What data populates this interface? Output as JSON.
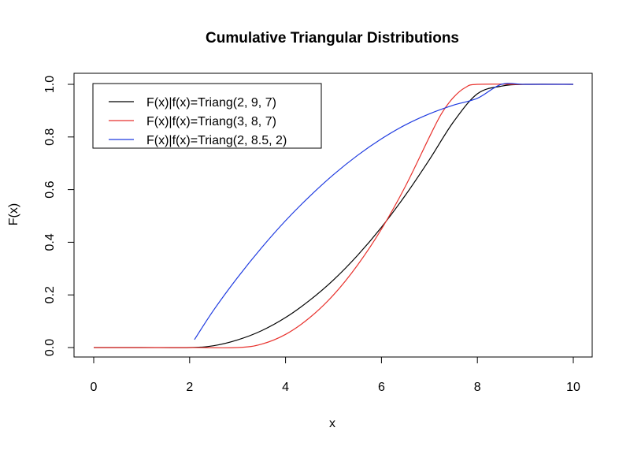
{
  "chart_data": {
    "type": "line",
    "title": "Cumulative Triangular Distributions",
    "xlabel": "x",
    "ylabel": "F(x)",
    "xlim": [
      0,
      10
    ],
    "ylim": [
      0,
      1
    ],
    "xticks": [
      0,
      2,
      4,
      6,
      8,
      10
    ],
    "xtick_labels": [
      "0",
      "2",
      "4",
      "6",
      "8",
      "10"
    ],
    "yticks": [
      0,
      0.2,
      0.4,
      0.6,
      0.8,
      1
    ],
    "ytick_labels": [
      "0.0",
      "0.2",
      "0.4",
      "0.6",
      "0.8",
      "1.0"
    ],
    "grid": false,
    "legend_position": "top-left",
    "series": [
      {
        "name": "F(x)|f(x)=Triang(2, 9, 7)",
        "color": "#000000",
        "x": [
          0,
          1,
          2,
          2.5,
          3,
          3.5,
          4,
          4.5,
          5,
          5.5,
          6,
          6.5,
          7,
          7.5,
          8,
          8.5,
          9,
          10
        ],
        "y": [
          0,
          0,
          0,
          0.007,
          0.029,
          0.064,
          0.114,
          0.179,
          0.257,
          0.35,
          0.457,
          0.579,
          0.714,
          0.857,
          0.964,
          0.993,
          1,
          1
        ]
      },
      {
        "name": "F(x)|f(x)=Triang(3, 8, 7)",
        "color": "#e8322d",
        "x": [
          0,
          1,
          2,
          3,
          3.5,
          4,
          4.5,
          5,
          5.5,
          6,
          6.5,
          7,
          7.25,
          7.5,
          7.75,
          8,
          9,
          10
        ],
        "y": [
          0,
          0,
          0,
          0,
          0.013,
          0.05,
          0.113,
          0.2,
          0.313,
          0.45,
          0.613,
          0.8,
          0.888,
          0.95,
          0.988,
          1,
          1,
          1
        ]
      },
      {
        "name": "F(x)|f(x)=Triang(2, 8.5, 2)",
        "color": "#1f3be0",
        "x": [
          2.1,
          2.5,
          3,
          3.5,
          4,
          4.5,
          5,
          5.5,
          6,
          6.5,
          7,
          7.5,
          8,
          8.5,
          9,
          10
        ],
        "y": [
          0.03,
          0.142,
          0.266,
          0.379,
          0.482,
          0.574,
          0.657,
          0.73,
          0.793,
          0.846,
          0.888,
          0.921,
          0.947,
          1,
          1,
          1
        ]
      }
    ]
  }
}
